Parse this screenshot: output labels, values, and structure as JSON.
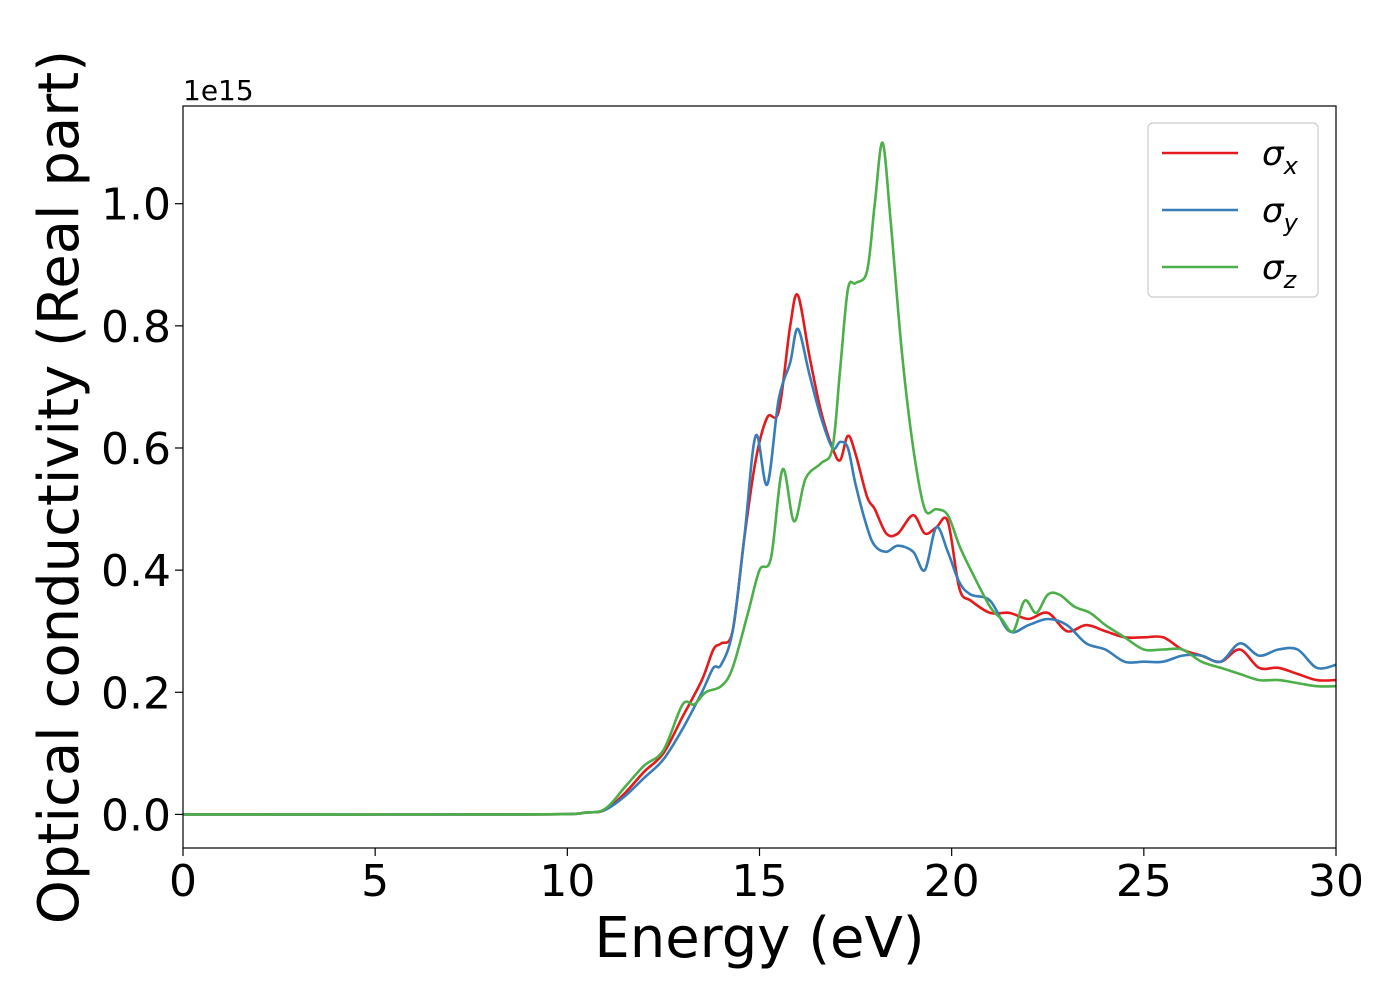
{
  "chart_data": {
    "type": "line",
    "xlabel": "Energy (eV)",
    "ylabel": "Optical conductivity (Real part)",
    "y_offset_text": "1e15",
    "xlim": [
      0,
      30
    ],
    "ylim": [
      -0.055,
      1.16
    ],
    "x_ticks": [
      0,
      5,
      10,
      15,
      20,
      25,
      30
    ],
    "x_tick_labels": [
      "0",
      "5",
      "10",
      "15",
      "20",
      "25",
      "30"
    ],
    "y_ticks": [
      0.0,
      0.2,
      0.4,
      0.6,
      0.8,
      1.0
    ],
    "y_tick_labels": [
      "0.0",
      "0.2",
      "0.4",
      "0.6",
      "0.8",
      "1.0"
    ],
    "grid": false,
    "legend_position": "top-right",
    "series": [
      {
        "name": "σ",
        "subscript": "x",
        "color": "#e41a1c",
        "x": [
          0,
          9,
          10.5,
          11,
          11.5,
          12,
          12.5,
          13,
          13.5,
          13.8,
          14,
          14.3,
          14.6,
          14.9,
          15.2,
          15.5,
          15.8,
          16,
          16.3,
          16.6,
          16.9,
          17.1,
          17.3,
          17.5,
          17.8,
          18,
          18.3,
          18.6,
          19,
          19.3,
          19.6,
          19.9,
          20.2,
          20.5,
          21,
          21.5,
          22,
          22.5,
          23,
          23.5,
          24,
          24.5,
          25,
          25.5,
          26,
          26.5,
          27,
          27.5,
          28,
          28.5,
          29,
          29.5,
          30
        ],
        "y": [
          0,
          0,
          0.003,
          0.008,
          0.035,
          0.07,
          0.1,
          0.16,
          0.22,
          0.27,
          0.28,
          0.3,
          0.45,
          0.58,
          0.65,
          0.66,
          0.8,
          0.85,
          0.75,
          0.66,
          0.6,
          0.58,
          0.62,
          0.59,
          0.52,
          0.5,
          0.46,
          0.46,
          0.49,
          0.46,
          0.47,
          0.48,
          0.37,
          0.35,
          0.33,
          0.33,
          0.32,
          0.33,
          0.3,
          0.31,
          0.3,
          0.29,
          0.29,
          0.29,
          0.27,
          0.26,
          0.25,
          0.27,
          0.24,
          0.24,
          0.23,
          0.22,
          0.22
        ]
      },
      {
        "name": "σ",
        "subscript": "y",
        "color": "#377eb8",
        "x": [
          0,
          9,
          10.5,
          11,
          11.5,
          12,
          12.5,
          13,
          13.5,
          13.8,
          14,
          14.3,
          14.6,
          14.9,
          15.2,
          15.5,
          15.8,
          16,
          16.3,
          16.6,
          16.9,
          17.1,
          17.3,
          17.5,
          17.8,
          18,
          18.3,
          18.6,
          19,
          19.3,
          19.6,
          19.9,
          20.2,
          20.5,
          21,
          21.5,
          22,
          22.5,
          23,
          23.5,
          24,
          24.5,
          25,
          25.5,
          26,
          26.5,
          27,
          27.5,
          28,
          28.5,
          29,
          29.5,
          30
        ],
        "y": [
          0,
          0,
          0.003,
          0.008,
          0.03,
          0.06,
          0.09,
          0.14,
          0.2,
          0.24,
          0.245,
          0.3,
          0.45,
          0.62,
          0.54,
          0.68,
          0.74,
          0.795,
          0.72,
          0.65,
          0.6,
          0.61,
          0.6,
          0.54,
          0.47,
          0.44,
          0.43,
          0.44,
          0.43,
          0.4,
          0.47,
          0.43,
          0.38,
          0.36,
          0.35,
          0.3,
          0.31,
          0.32,
          0.31,
          0.28,
          0.27,
          0.25,
          0.25,
          0.25,
          0.26,
          0.26,
          0.25,
          0.28,
          0.26,
          0.27,
          0.27,
          0.24,
          0.245
        ]
      },
      {
        "name": "σ",
        "subscript": "z",
        "color": "#4daf4a",
        "x": [
          0,
          9,
          10.5,
          11,
          11.5,
          12,
          12.5,
          13,
          13.3,
          13.6,
          14,
          14.3,
          14.7,
          15,
          15.3,
          15.6,
          15.9,
          16.2,
          16.6,
          16.9,
          17.1,
          17.3,
          17.5,
          17.8,
          18,
          18.2,
          18.4,
          18.7,
          19,
          19.3,
          19.6,
          19.9,
          20.2,
          20.5,
          21,
          21.3,
          21.6,
          21.9,
          22.2,
          22.5,
          22.8,
          23.2,
          23.6,
          24,
          24.5,
          25,
          25.5,
          26,
          26.5,
          27,
          27.5,
          28,
          28.5,
          29,
          29.5,
          30
        ],
        "y": [
          0,
          0,
          0.003,
          0.01,
          0.045,
          0.08,
          0.105,
          0.18,
          0.18,
          0.2,
          0.21,
          0.24,
          0.33,
          0.4,
          0.42,
          0.565,
          0.48,
          0.55,
          0.575,
          0.6,
          0.73,
          0.86,
          0.87,
          0.89,
          1.0,
          1.1,
          0.98,
          0.76,
          0.6,
          0.5,
          0.5,
          0.49,
          0.44,
          0.4,
          0.34,
          0.32,
          0.3,
          0.35,
          0.33,
          0.36,
          0.36,
          0.34,
          0.33,
          0.31,
          0.29,
          0.27,
          0.27,
          0.27,
          0.25,
          0.24,
          0.23,
          0.22,
          0.22,
          0.215,
          0.21,
          0.21
        ]
      }
    ]
  }
}
